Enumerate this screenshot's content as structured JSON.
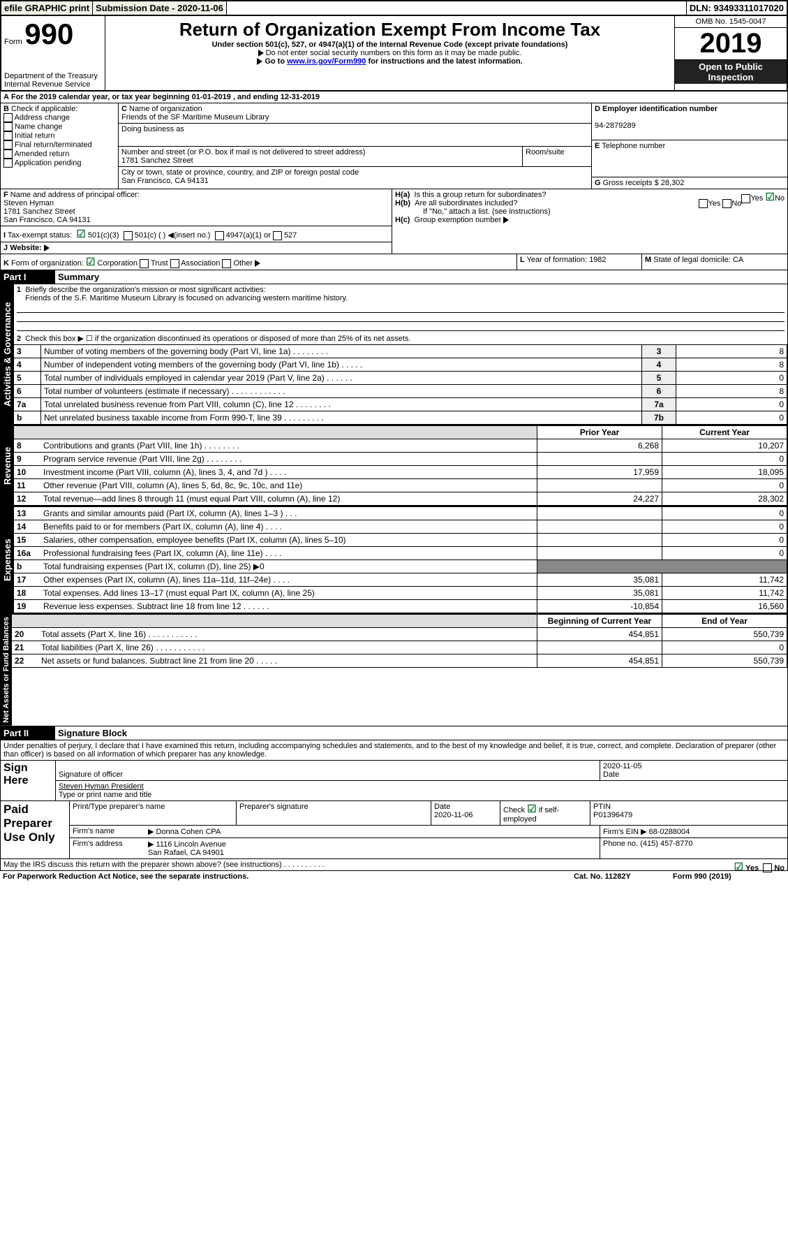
{
  "topbar": {
    "efile": "efile GRAPHIC print",
    "subdate_label": "Submission Date - 2020-11-06",
    "dln": "DLN: 93493311017020"
  },
  "header": {
    "form": "Form",
    "form_num": "990",
    "dept": "Department of the Treasury\nInternal Revenue Service",
    "title": "Return of Organization Exempt From Income Tax",
    "sub": "Under section 501(c), 527, or 4947(a)(1) of the Internal Revenue Code (except private foundations)",
    "note1": "Do not enter social security numbers on this form as it may be made public.",
    "note2_pre": "Go to ",
    "note2_link": "www.irs.gov/Form990",
    "note2_post": " for instructions and the latest information.",
    "omb": "OMB No. 1545-0047",
    "year": "2019",
    "open": "Open to Public Inspection"
  },
  "A": {
    "text": "For the 2019 calendar year, or tax year beginning 01-01-2019    , and ending 12-31-2019"
  },
  "B": {
    "label": "Check if applicable:",
    "items": [
      "Address change",
      "Name change",
      "Initial return",
      "Final return/terminated",
      "Amended return",
      "Application pending"
    ]
  },
  "C": {
    "name_label": "Name of organization",
    "name": "Friends of the SF Maritime Museum Library",
    "dba_label": "Doing business as",
    "street_label": "Number and street (or P.O. box if mail is not delivered to street address)",
    "room": "Room/suite",
    "street": "1781 Sanchez Street",
    "city_label": "City or town, state or province, country, and ZIP or foreign postal code",
    "city": "San Francisco, CA  94131"
  },
  "D": {
    "label": "Employer identification number",
    "val": "94-2879289"
  },
  "E": {
    "label": "Telephone number"
  },
  "G": {
    "label": "Gross receipts $ 28,302"
  },
  "F": {
    "label": "Name and address of principal officer:",
    "name": "Steven Hyman",
    "street": "1781 Sanchez Street",
    "city": "San Francisco, CA  94131"
  },
  "H": {
    "a": "Is this a group return for subordinates?",
    "yes": "Yes",
    "no": "No",
    "b": "Are all subordinates included?",
    "note": "If \"No,\" attach a list. (see instructions)",
    "c": "Group exemption number"
  },
  "I": {
    "label": "Tax-exempt status:",
    "c3": "501(c)(3)",
    "c": "501(c) (  )",
    "ins": "(insert no.)",
    "a1": "4947(a)(1) or",
    "s527": "527"
  },
  "J": {
    "label": "Website:"
  },
  "K": {
    "label": "Form of organization:",
    "corp": "Corporation",
    "trust": "Trust",
    "assoc": "Association",
    "other": "Other"
  },
  "L": {
    "label": "Year of formation: 1982"
  },
  "M": {
    "label": "State of legal domicile: CA"
  },
  "part1": {
    "label": "Part I",
    "title": "Summary",
    "side_ag": "Activities & Governance",
    "side_rev": "Revenue",
    "side_exp": "Expenses",
    "side_nab": "Net Assets or Fund Balances",
    "l1": "Briefly describe the organization's mission or most significant activities:",
    "l1v": "Friends of the S.F. Maritime Museum Library is focused on advancing western maritime history.",
    "l2": "Check this box ▶ ☐  if the organization discontinued its operations or disposed of more than 25% of its net assets.",
    "rows_gov": [
      {
        "n": "3",
        "t": "Number of voting members of the governing body (Part VI, line 1a)   .    .    .    .    .    .    .    .",
        "bn": "3",
        "v": "8"
      },
      {
        "n": "4",
        "t": "Number of independent voting members of the governing body (Part VI, line 1b)   .    .    .    .    .",
        "bn": "4",
        "v": "8"
      },
      {
        "n": "5",
        "t": "Total number of individuals employed in calendar year 2019 (Part V, line 2a)   .    .    .    .    .    .",
        "bn": "5",
        "v": "0"
      },
      {
        "n": "6",
        "t": "Total number of volunteers (estimate if necessary)   .    .    .    .    .    .    .    .    .    .    .    .",
        "bn": "6",
        "v": "8"
      },
      {
        "n": "7a",
        "t": "Total unrelated business revenue from Part VIII, column (C), line 12   .    .    .    .    .    .    .    .",
        "bn": "7a",
        "v": "0"
      },
      {
        "n": "b",
        "t": "Net unrelated business taxable income from Form 990-T, line 39   .    .    .    .    .    .    .    .    .",
        "bn": "7b",
        "v": "0"
      }
    ],
    "hdr_prior": "Prior Year",
    "hdr_curr": "Current Year",
    "rows_rev": [
      {
        "n": "8",
        "t": "Contributions and grants (Part VIII, line 1h)   .    .    .    .    .    .    .    .",
        "p": "6,268",
        "c": "10,207"
      },
      {
        "n": "9",
        "t": "Program service revenue (Part VIII, line 2g)   .    .    .    .    .    .    .    .",
        "p": "",
        "c": "0"
      },
      {
        "n": "10",
        "t": "Investment income (Part VIII, column (A), lines 3, 4, and 7d )   .    .    .    .",
        "p": "17,959",
        "c": "18,095"
      },
      {
        "n": "11",
        "t": "Other revenue (Part VIII, column (A), lines 5, 6d, 8c, 9c, 10c, and 11e)",
        "p": "",
        "c": "0"
      },
      {
        "n": "12",
        "t": "Total revenue—add lines 8 through 11 (must equal Part VIII, column (A), line 12)",
        "p": "24,227",
        "c": "28,302"
      }
    ],
    "rows_exp": [
      {
        "n": "13",
        "t": "Grants and similar amounts paid (Part IX, column (A), lines 1–3 )   .    .    .",
        "p": "",
        "c": "0"
      },
      {
        "n": "14",
        "t": "Benefits paid to or for members (Part IX, column (A), line 4)   .    .    .    .",
        "p": "",
        "c": "0"
      },
      {
        "n": "15",
        "t": "Salaries, other compensation, employee benefits (Part IX, column (A), lines 5–10)",
        "p": "",
        "c": "0"
      },
      {
        "n": "16a",
        "t": "Professional fundraising fees (Part IX, column (A), line 11e)   .    .    .    .",
        "p": "",
        "c": "0"
      },
      {
        "n": "b",
        "t": "Total fundraising expenses (Part IX, column (D), line 25) ▶0",
        "p": "",
        "c": "",
        "noval": true
      },
      {
        "n": "17",
        "t": "Other expenses (Part IX, column (A), lines 11a–11d, 11f–24e)   .    .    .    .",
        "p": "35,081",
        "c": "11,742"
      },
      {
        "n": "18",
        "t": "Total expenses. Add lines 13–17 (must equal Part IX, column (A), line 25)",
        "p": "35,081",
        "c": "11,742"
      },
      {
        "n": "19",
        "t": "Revenue less expenses. Subtract line 18 from line 12   .    .    .    .    .    .",
        "p": "-10,854",
        "c": "16,560"
      }
    ],
    "hdr_beg": "Beginning of Current Year",
    "hdr_end": "End of Year",
    "rows_nab": [
      {
        "n": "20",
        "t": "Total assets (Part X, line 16)   .    .    .    .    .    .    .    .    .    .    .",
        "p": "454,851",
        "c": "550,739"
      },
      {
        "n": "21",
        "t": "Total liabilities (Part X, line 26)   .    .    .    .    .    .    .    .    .    .    .",
        "p": "",
        "c": "0"
      },
      {
        "n": "22",
        "t": "Net assets or fund balances. Subtract line 21 from line 20   .    .    .    .    .",
        "p": "454,851",
        "c": "550,739"
      }
    ]
  },
  "part2": {
    "label": "Part II",
    "title": "Signature Block",
    "decl": "Under penalties of perjury, I declare that I have examined this return, including accompanying schedules and statements, and to the best of my knowledge and belief, it is true, correct, and complete. Declaration of preparer (other than officer) is based on all information of which preparer has any knowledge.",
    "sign_here": "Sign Here",
    "sig_label": "Signature of officer",
    "date": "2020-11-05",
    "date_label": "Date",
    "name": "Steven Hyman  President",
    "name_label": "Type or print name and title",
    "paid": "Paid Preparer Use Only",
    "pp_name_label": "Print/Type preparer's name",
    "pp_sig_label": "Preparer's signature",
    "pp_date_label": "Date",
    "pp_date": "2020-11-06",
    "pp_check": "Check ☑ if self-employed",
    "ptin_label": "PTIN",
    "ptin": "P01396479",
    "firm_name_label": "Firm's name",
    "firm_name": "▶ Donna Cohen CPA",
    "firm_ein": "Firm's EIN ▶ 68-0288004",
    "firm_addr_label": "Firm's address",
    "firm_addr": "▶ 1116 Lincoln Avenue\nSan Rafael, CA  94901",
    "phone": "Phone no. (415) 457-8770",
    "discuss": "May the IRS discuss this return with the preparer shown above? (see instructions)   .    .    .    .    .    .    .    .    .    .",
    "yes": "Yes",
    "no": "No"
  },
  "footer": {
    "pra": "For Paperwork Reduction Act Notice, see the separate instructions.",
    "cat": "Cat. No. 11282Y",
    "form": "Form 990 (2019)"
  }
}
